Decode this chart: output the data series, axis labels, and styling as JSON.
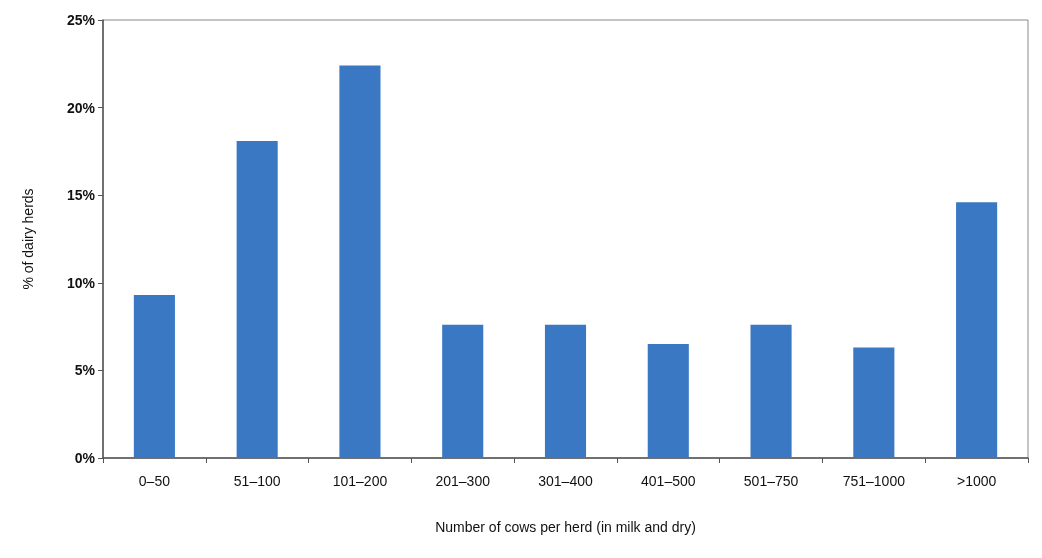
{
  "chart_data": {
    "type": "bar",
    "xlabel": "Number of cows per herd (in milk and dry)",
    "ylabel": "% of dairy herds",
    "categories": [
      "0–50",
      "51–100",
      "101–200",
      "201–300",
      "301–400",
      "401–500",
      "501–750",
      "751–1000",
      ">1000"
    ],
    "values": [
      9.3,
      18.1,
      22.4,
      7.6,
      7.6,
      6.5,
      7.6,
      6.3,
      14.6
    ],
    "color": "#3a78c4",
    "ylim": [
      0,
      25
    ],
    "yticks": [
      {
        "value": 0,
        "label": "0%"
      },
      {
        "value": 5,
        "label": "5%"
      },
      {
        "value": 10,
        "label": "10%"
      },
      {
        "value": 15,
        "label": "15%"
      },
      {
        "value": 20,
        "label": "20%"
      },
      {
        "value": 25,
        "label": "25%"
      }
    ],
    "grid": false
  }
}
